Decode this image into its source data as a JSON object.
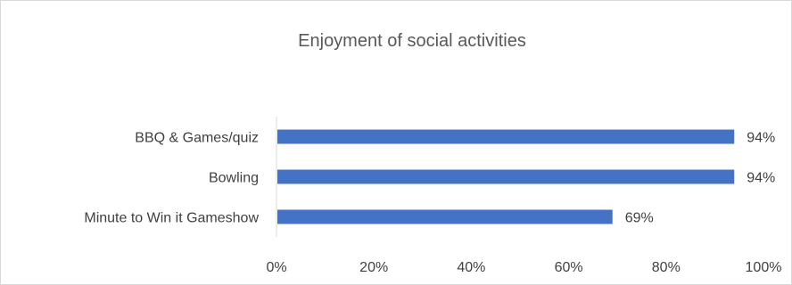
{
  "colors": {
    "bar": "#4472c4",
    "axis": "#d9d9d9",
    "text": "#404040",
    "title": "#595959",
    "border": "#d9d9d9"
  },
  "chart_data": {
    "type": "bar",
    "orientation": "horizontal",
    "title": "Enjoyment of social activities",
    "categories": [
      "BBQ & Games/quiz",
      "Bowling",
      "Minute to Win it Gameshow"
    ],
    "values": [
      0.94,
      0.94,
      0.69
    ],
    "data_labels": [
      "94%",
      "94%",
      "69%"
    ],
    "x_ticks": [
      0,
      0.2,
      0.4,
      0.6,
      0.8,
      1.0
    ],
    "x_tick_labels": [
      "0%",
      "20%",
      "40%",
      "60%",
      "80%",
      "100%"
    ],
    "xlim": [
      0,
      1
    ],
    "xlabel": "",
    "ylabel": "",
    "grid": false,
    "legend": "none"
  }
}
